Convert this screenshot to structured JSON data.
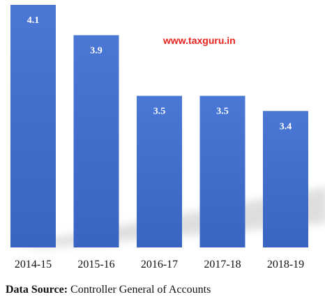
{
  "watermark": "www.taxguru.in",
  "source": {
    "label": "Data Source:",
    "text": " Controller General of Accounts"
  },
  "colors": {
    "bar_top": "#4a78d4",
    "bar_bottom": "#3a64c2",
    "label": "#ffffff",
    "tick": "#111111",
    "watermark": "#e8221c"
  },
  "chart_data": {
    "type": "bar",
    "categories": [
      "2014-15",
      "2015-16",
      "2016-17",
      "2017-18",
      "2018-19"
    ],
    "values": [
      4.1,
      3.9,
      3.5,
      3.5,
      3.4
    ],
    "data_labels": [
      "4.1",
      "3.9",
      "3.5",
      "3.5",
      "3.4"
    ],
    "title": "",
    "xlabel": "",
    "ylabel": "",
    "ylim": [
      2.5,
      4.1
    ],
    "grid": false,
    "legend": "none"
  }
}
